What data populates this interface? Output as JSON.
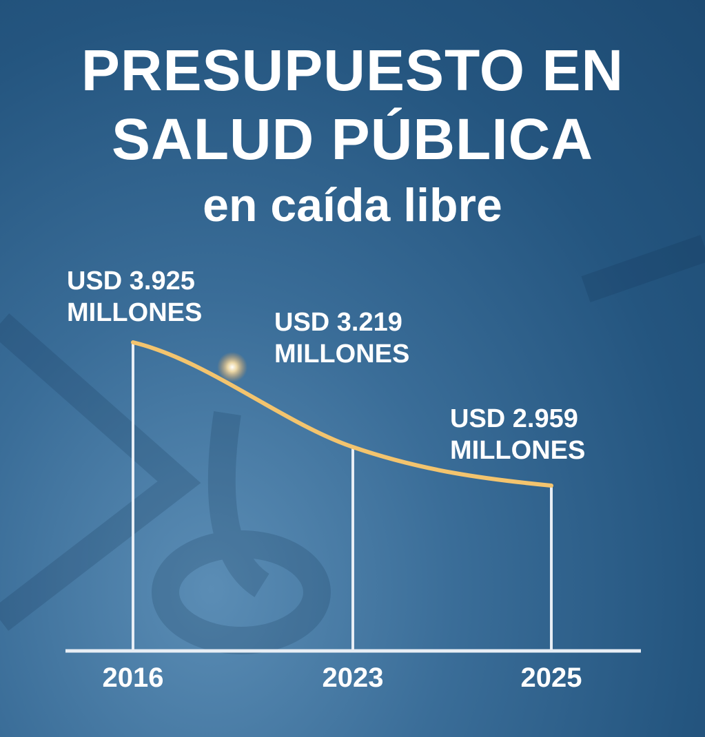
{
  "chart_data": {
    "type": "line",
    "title": "PRESUPUESTO EN SALUD PÚBLICA",
    "subtitle": "en caída libre",
    "categories": [
      "2016",
      "2023",
      "2025"
    ],
    "values": [
      3925,
      3219,
      2959
    ],
    "value_labels": [
      "USD 3.925 MILLONES",
      "USD 3.219 MILLONES",
      "USD 2.959 MILLONES"
    ],
    "color": "#f3c46e"
  }
}
